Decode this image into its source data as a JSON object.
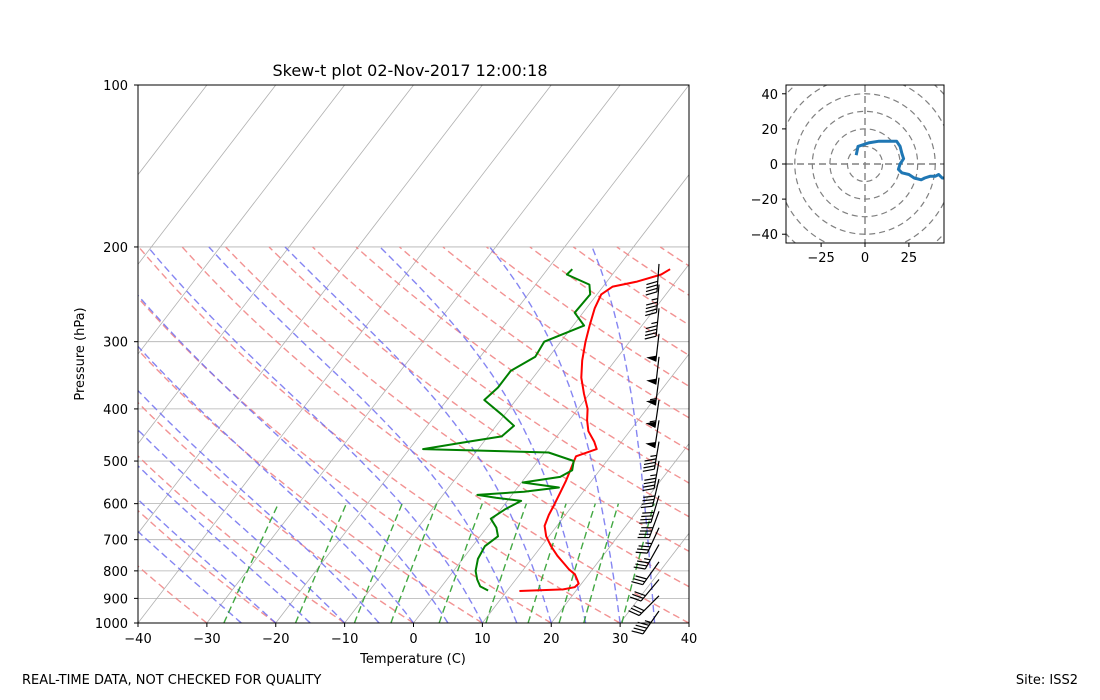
{
  "footer": {
    "quality_note": "REAL-TIME DATA, NOT CHECKED FOR QUALITY",
    "site_label": "Site: ISS2"
  },
  "chart_data": [
    {
      "type": "line",
      "subtype": "skew-t",
      "title": "Skew-t plot 02-Nov-2017 12:00:18",
      "xlabel": "Temperature (C)",
      "ylabel": "Pressure (hPa)",
      "xlim": [
        -40,
        40
      ],
      "ylim": [
        1000,
        100
      ],
      "y_scale": "log",
      "x_ticks": [
        -40,
        -30,
        -20,
        -10,
        0,
        10,
        20,
        30,
        40
      ],
      "y_ticks": [
        100,
        200,
        300,
        400,
        500,
        600,
        700,
        800,
        900,
        1000
      ],
      "grid": true,
      "colors": {
        "temperature": "#ff0000",
        "dewpoint": "#008000",
        "dry_adiabats": "#f08080",
        "moist_adiabats": "#7070f0",
        "mixing_ratio": "#2e9e2e",
        "isotherms": "#b0b0b0",
        "wind_barbs": "#000000"
      },
      "series": [
        {
          "key": "temperature",
          "values": [
            [
              872,
              11.8
            ],
            [
              866,
              18.0
            ],
            [
              858,
              19.4
            ],
            [
              845,
              19.6
            ],
            [
              830,
              18.9
            ],
            [
              812,
              18.0
            ],
            [
              795,
              16.6
            ],
            [
              775,
              15.2
            ],
            [
              750,
              13.4
            ],
            [
              720,
              11.4
            ],
            [
              690,
              9.6
            ],
            [
              660,
              8.2
            ],
            [
              630,
              7.6
            ],
            [
              600,
              7.2
            ],
            [
              575,
              6.8
            ],
            [
              545,
              6.3
            ],
            [
              515,
              5.6
            ],
            [
              490,
              5.0
            ],
            [
              475,
              7.2
            ],
            [
              460,
              6.0
            ],
            [
              440,
              4.0
            ],
            [
              420,
              2.6
            ],
            [
              400,
              1.4
            ],
            [
              375,
              -0.8
            ],
            [
              350,
              -3.0
            ],
            [
              325,
              -4.8
            ],
            [
              300,
              -6.4
            ],
            [
              280,
              -7.6
            ],
            [
              260,
              -8.8
            ],
            [
              245,
              -9.4
            ],
            [
              237,
              -8.6
            ],
            [
              232,
              -5.6
            ],
            [
              225,
              -2.9
            ],
            [
              220,
              -2.2
            ]
          ]
        },
        {
          "key": "dewpoint",
          "values": [
            [
              870,
              7.2
            ],
            [
              855,
              5.6
            ],
            [
              830,
              4.4
            ],
            [
              800,
              3.2
            ],
            [
              760,
              2.2
            ],
            [
              720,
              1.8
            ],
            [
              690,
              2.6
            ],
            [
              665,
              1.4
            ],
            [
              640,
              -0.4
            ],
            [
              615,
              0.6
            ],
            [
              593,
              2.0
            ],
            [
              585,
              -2.0
            ],
            [
              578,
              -5.0
            ],
            [
              570,
              1.4
            ],
            [
              560,
              6.0
            ],
            [
              548,
              0.2
            ],
            [
              535,
              5.0
            ],
            [
              520,
              6.0
            ],
            [
              500,
              5.2
            ],
            [
              482,
              0.6
            ],
            [
              475,
              -18.0
            ],
            [
              462,
              -13.0
            ],
            [
              450,
              -8.0
            ],
            [
              430,
              -7.4
            ],
            [
              410,
              -10.4
            ],
            [
              385,
              -14.6
            ],
            [
              365,
              -14.0
            ],
            [
              340,
              -14.0
            ],
            [
              320,
              -12.0
            ],
            [
              300,
              -12.4
            ],
            [
              280,
              -8.4
            ],
            [
              265,
              -11.2
            ],
            [
              245,
              -11.0
            ],
            [
              235,
              -12.2
            ],
            [
              225,
              -16.6
            ],
            [
              220,
              -16.4
            ]
          ]
        }
      ],
      "wind_barbs": [
        {
          "pressure": 215,
          "u": -3,
          "v": 42
        },
        {
          "pressure": 235,
          "u": -4,
          "v": 46
        },
        {
          "pressure": 260,
          "u": -5,
          "v": 48
        },
        {
          "pressure": 290,
          "u": -6,
          "v": 52
        },
        {
          "pressure": 320,
          "u": -6,
          "v": 52
        },
        {
          "pressure": 350,
          "u": -7,
          "v": 55
        },
        {
          "pressure": 385,
          "u": -8,
          "v": 55
        },
        {
          "pressure": 420,
          "u": -8,
          "v": 52
        },
        {
          "pressure": 460,
          "u": -8,
          "v": 48
        },
        {
          "pressure": 500,
          "u": -8,
          "v": 45
        },
        {
          "pressure": 540,
          "u": -10,
          "v": 42
        },
        {
          "pressure": 580,
          "u": -12,
          "v": 40
        },
        {
          "pressure": 620,
          "u": -14,
          "v": 38
        },
        {
          "pressure": 665,
          "u": -16,
          "v": 35
        },
        {
          "pressure": 715,
          "u": -18,
          "v": 32
        },
        {
          "pressure": 770,
          "u": -20,
          "v": 28
        },
        {
          "pressure": 830,
          "u": -20,
          "v": 24
        },
        {
          "pressure": 890,
          "u": -22,
          "v": 22
        },
        {
          "pressure": 950,
          "u": -28,
          "v": 40
        }
      ]
    },
    {
      "type": "line",
      "subtype": "hodograph",
      "xlim": [
        -45,
        45
      ],
      "ylim": [
        -45,
        45
      ],
      "x_ticks": [
        -25,
        0,
        25
      ],
      "y_ticks": [
        40,
        20,
        0,
        -20,
        -40
      ],
      "ring_radii": [
        10,
        20,
        30,
        40,
        50,
        60
      ],
      "color": "#1f77b4",
      "points": [
        [
          -5,
          5
        ],
        [
          -4,
          10
        ],
        [
          2,
          12
        ],
        [
          8,
          13
        ],
        [
          14,
          13
        ],
        [
          18,
          13
        ],
        [
          20,
          10
        ],
        [
          21,
          6
        ],
        [
          22,
          3
        ],
        [
          20,
          0
        ],
        [
          19,
          -3
        ],
        [
          21,
          -5
        ],
        [
          25,
          -6
        ],
        [
          28,
          -8
        ],
        [
          32,
          -9
        ],
        [
          34,
          -8
        ],
        [
          37,
          -7
        ],
        [
          40,
          -7
        ],
        [
          42,
          -6
        ],
        [
          44,
          -8
        ],
        [
          46,
          -8
        ]
      ]
    }
  ]
}
